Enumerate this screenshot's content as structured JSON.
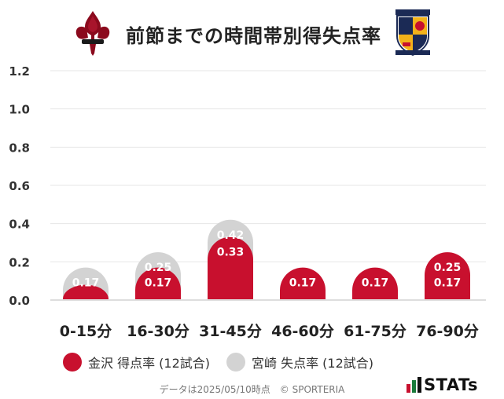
{
  "header": {
    "title": "前節までの時間帯別得失点率",
    "left_crest_icon": "kanazawa-fleur-de-lis-crest-icon",
    "right_crest_icon": "tochigi-miyazaki-shield-crest-icon"
  },
  "chart_data": {
    "type": "bar",
    "categories": [
      "0-15分",
      "16-30分",
      "31-45分",
      "46-60分",
      "61-75分",
      "76-90分"
    ],
    "series": [
      {
        "name": "金沢 得点率 (12試合)",
        "color": "#c8102e",
        "values": [
          0.08,
          0.17,
          0.33,
          0.17,
          0.17,
          0.25
        ],
        "labels": [
          "",
          "0.17",
          "0.33",
          "0.17",
          "0.17",
          "0.25"
        ]
      },
      {
        "name": "宮崎 失点率 (12試合)",
        "color": "#d3d3d3",
        "values": [
          0.17,
          0.25,
          0.42,
          0.0,
          0.0,
          0.17
        ],
        "labels": [
          "0.17",
          "0.25",
          "0.42",
          "",
          "",
          "0.17"
        ]
      }
    ],
    "yticks": [
      "0.0",
      "0.2",
      "0.4",
      "0.6",
      "0.8",
      "1.0",
      "1.2"
    ],
    "ylim": [
      0,
      1.2
    ],
    "grid": true,
    "legend_position": "bottom",
    "xlabel": "",
    "ylabel": ""
  },
  "footer": {
    "note": "データは2025/05/10時点　© SPORTERIA",
    "brand": "STATs"
  }
}
